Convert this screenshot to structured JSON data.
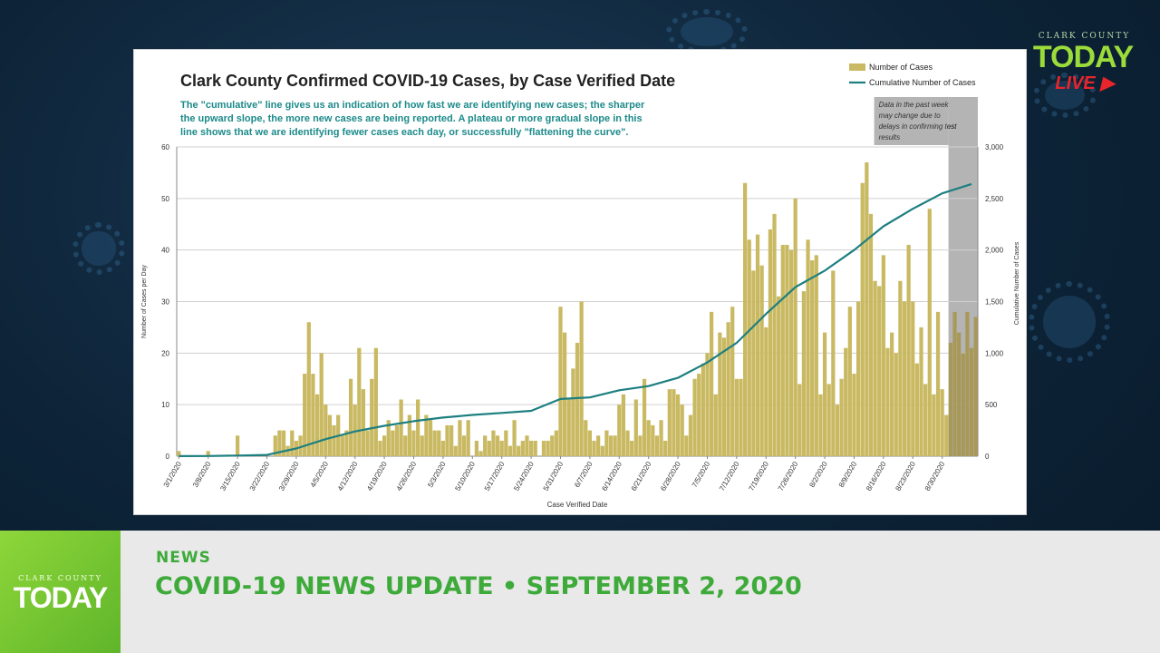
{
  "logo": {
    "county": "CLARK COUNTY",
    "today": "TODAY",
    "live": "LIVE"
  },
  "lower_third": {
    "category": "NEWS",
    "headline": "COVID-19 NEWS UPDATE • SEPTEMBER 2, 2020"
  },
  "colors": {
    "bar": "#c9b962",
    "bar_recent": "#a8995a",
    "line": "#1d7f80",
    "subtitle": "#1d8a8a",
    "shade": "#b4b4b4",
    "brand_green": "#3daa3a"
  },
  "chart_data": {
    "type": "bar",
    "title": "Clark County Confirmed COVID-19 Cases, by Case Verified Date",
    "subtitle_lines": [
      "The \"cumulative\" line gives  us an indication of how fast we are identifying new cases; the sharper",
      "the upward slope, the more new cases are being reported. A plateau or more gradual slope in this",
      "line shows that we are identifying fewer cases each day, or successfully \"flattening the curve\"."
    ],
    "xlabel": "Case Verified Date",
    "ylabel": "Number of Cases per Day",
    "y2label": "Cumulative Number of Cases",
    "ylim": [
      0,
      60
    ],
    "y_ticks": [
      0,
      10,
      20,
      30,
      40,
      50,
      60
    ],
    "y2lim": [
      0,
      3000
    ],
    "y2_ticks": [
      "0",
      "500",
      "1,000",
      "1,500",
      "2,000",
      "2,500",
      "3,000"
    ],
    "x_tick_labels": [
      "3/1/2020",
      "3/8/2020",
      "3/15/2020",
      "3/22/2020",
      "3/29/2020",
      "4/5/2020",
      "4/12/2020",
      "4/19/2020",
      "4/26/2020",
      "5/3/2020",
      "5/10/2020",
      "5/17/2020",
      "5/24/2020",
      "5/31/2020",
      "6/7/2020",
      "6/14/2020",
      "6/21/2020",
      "6/28/2020",
      "7/5/2020",
      "7/12/2020",
      "7/19/2020",
      "7/26/2020",
      "8/2/2020",
      "8/9/2020",
      "8/16/2020",
      "8/23/2020",
      "8/30/2020"
    ],
    "start_date": "3/1/2020",
    "grid": true,
    "legend": {
      "position": "top-right",
      "entries": [
        "Number of Cases",
        "Cumulative Number of Cases"
      ]
    },
    "annotation": [
      "Data in the past week",
      "may change due to",
      "delays in confirming test",
      "results"
    ],
    "shaded_days": 7,
    "series": [
      {
        "name": "Number of Cases",
        "kind": "bar",
        "values": [
          1,
          0,
          0,
          0,
          0,
          0,
          0,
          1,
          0,
          0,
          0,
          0,
          0,
          0,
          4,
          0,
          0,
          0,
          0,
          0,
          0,
          0,
          0,
          4,
          5,
          5,
          2,
          5,
          3,
          4,
          16,
          26,
          16,
          12,
          20,
          10,
          8,
          6,
          8,
          4,
          5,
          15,
          10,
          21,
          13,
          5,
          15,
          21,
          3,
          4,
          7,
          5,
          6,
          11,
          4,
          8,
          5,
          11,
          4,
          8,
          7,
          5,
          5,
          3,
          6,
          6,
          2,
          7,
          4,
          7,
          0,
          3,
          1,
          4,
          3,
          5,
          4,
          3,
          5,
          2,
          7,
          2,
          3,
          4,
          3,
          3,
          0,
          3,
          3,
          4,
          5,
          29,
          24,
          11,
          17,
          22,
          30,
          7,
          5,
          3,
          4,
          2,
          5,
          4,
          4,
          10,
          12,
          5,
          3,
          11,
          4,
          15,
          7,
          6,
          4,
          7,
          3,
          13,
          13,
          12,
          10,
          4,
          8,
          15,
          16,
          18,
          20,
          28,
          12,
          24,
          23,
          26,
          29,
          15,
          15,
          53,
          42,
          36,
          43,
          37,
          25,
          44,
          47,
          31,
          41,
          41,
          40,
          50,
          14,
          32,
          42,
          38,
          39,
          12,
          24,
          14,
          36,
          10,
          15,
          21,
          29,
          16,
          30,
          53,
          57,
          47,
          34,
          33,
          39,
          21,
          24,
          20,
          34,
          30,
          41,
          30,
          18,
          25,
          14,
          48,
          12,
          28,
          13,
          8,
          22,
          28,
          24,
          20,
          28,
          21,
          27
        ]
      },
      {
        "name": "Cumulative Number of Cases",
        "kind": "line",
        "points": [
          [
            0,
            1
          ],
          [
            7,
            2
          ],
          [
            14,
            6
          ],
          [
            21,
            12
          ],
          [
            28,
            75
          ],
          [
            35,
            165
          ],
          [
            42,
            240
          ],
          [
            49,
            295
          ],
          [
            56,
            340
          ],
          [
            63,
            375
          ],
          [
            70,
            400
          ],
          [
            77,
            420
          ],
          [
            84,
            440
          ],
          [
            91,
            555
          ],
          [
            98,
            570
          ],
          [
            105,
            640
          ],
          [
            112,
            680
          ],
          [
            119,
            760
          ],
          [
            126,
            910
          ],
          [
            133,
            1100
          ],
          [
            140,
            1380
          ],
          [
            147,
            1640
          ],
          [
            154,
            1800
          ],
          [
            161,
            2000
          ],
          [
            168,
            2230
          ],
          [
            175,
            2400
          ],
          [
            182,
            2550
          ],
          [
            189,
            2640
          ]
        ]
      }
    ]
  }
}
